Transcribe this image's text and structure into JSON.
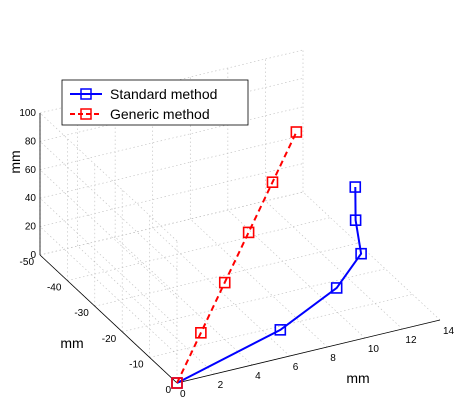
{
  "chart_data": {
    "type": "line3d",
    "axes": {
      "x": {
        "label": "mm",
        "range": [
          0,
          14
        ],
        "ticks": [
          0,
          2,
          4,
          6,
          8,
          10,
          12,
          14
        ]
      },
      "y": {
        "label": "mm",
        "range": [
          -50,
          0
        ],
        "ticks": [
          -50,
          -40,
          -30,
          -20,
          -10,
          0
        ]
      },
      "z": {
        "label": "mm",
        "range": [
          0,
          100
        ],
        "ticks": [
          0,
          20,
          40,
          60,
          80,
          100
        ]
      }
    },
    "grid": true,
    "legend": {
      "position": "top-left"
    },
    "series": [
      {
        "name": "Standard method",
        "color": "#0000ff",
        "line_style": "solid",
        "marker": "square",
        "points": [
          {
            "x": 0.0,
            "y": 0.0,
            "z": 0
          },
          {
            "x": 5.5,
            "y": 0.0,
            "z": 20
          },
          {
            "x": 8.5,
            "y": 0.0,
            "z": 40
          },
          {
            "x": 9.8,
            "y": 0.0,
            "z": 60
          },
          {
            "x": 9.8,
            "y": -2.0,
            "z": 80
          },
          {
            "x": 10.0,
            "y": -3.5,
            "z": 100
          }
        ]
      },
      {
        "name": "Generic method",
        "color": "#ff0000",
        "line_style": "dashed",
        "marker": "square",
        "points": [
          {
            "x": 0.0,
            "y": 0.0,
            "z": 0
          },
          {
            "x": 2.0,
            "y": -5.0,
            "z": 20
          },
          {
            "x": 4.0,
            "y": -10.0,
            "z": 40
          },
          {
            "x": 6.0,
            "y": -15.0,
            "z": 60
          },
          {
            "x": 8.0,
            "y": -20.0,
            "z": 80
          },
          {
            "x": 10.0,
            "y": -25.0,
            "z": 100
          }
        ]
      }
    ]
  }
}
